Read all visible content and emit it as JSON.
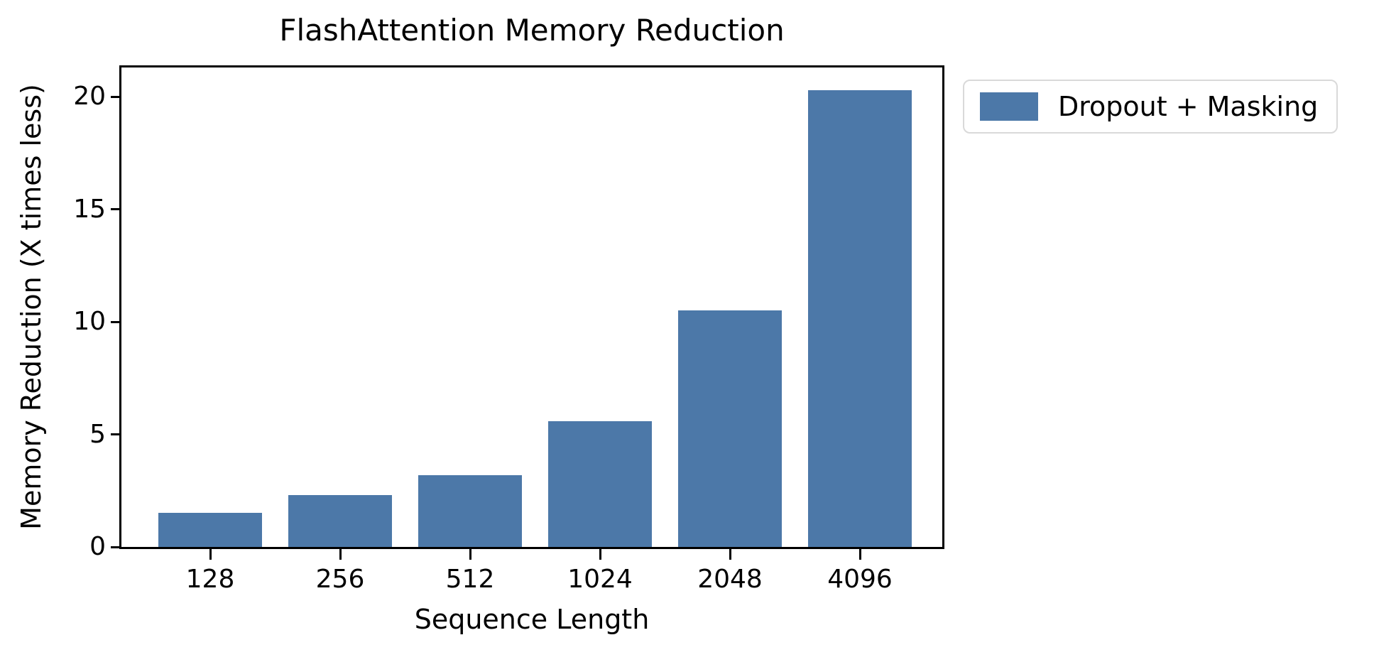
{
  "figure": {
    "background": "#ffffff",
    "text_color": "#000000"
  },
  "chart_data": {
    "type": "bar",
    "title": "FlashAttention Memory Reduction",
    "xlabel": "Sequence Length",
    "ylabel": "Memory Reduction (X times less)",
    "categories": [
      "128",
      "256",
      "512",
      "1024",
      "2048",
      "4096"
    ],
    "values": [
      1.5,
      2.3,
      3.2,
      5.6,
      10.5,
      20.3
    ],
    "yticks": [
      0,
      5,
      10,
      15,
      20
    ],
    "ylim": [
      0,
      21.3
    ],
    "grid": false,
    "bar_color": "#4c78a8",
    "legend": {
      "position": "upper-right-outside",
      "border_color": "#d9d9d9",
      "entries": [
        {
          "label": "Dropout + Masking",
          "color": "#4c78a8"
        }
      ]
    }
  }
}
